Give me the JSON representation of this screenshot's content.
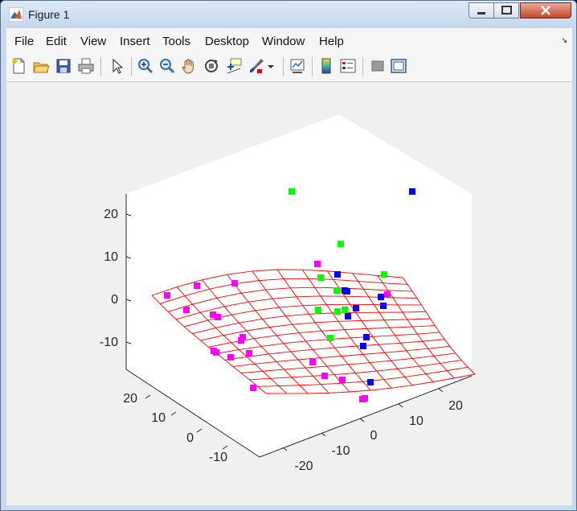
{
  "window": {
    "title": "Figure 1"
  },
  "menu": {
    "items": [
      "File",
      "Edit",
      "View",
      "Insert",
      "Tools",
      "Desktop",
      "Window",
      "Help"
    ]
  },
  "toolbar": {
    "icons": [
      "new-figure-icon",
      "open-file-icon",
      "save-icon",
      "print-icon",
      "pointer-icon",
      "zoom-in-icon",
      "zoom-out-icon",
      "pan-hand-icon",
      "rotate-3d-icon",
      "data-cursor-icon",
      "brush-icon",
      "brush-dropdown-icon",
      "link-plot-icon",
      "colorbar-icon",
      "legend-icon",
      "hide-plot-tools-icon",
      "show-plot-tools-icon"
    ]
  },
  "chart_data": {
    "type": "scatter",
    "title": "",
    "view": "3d",
    "grid": false,
    "z_ticks": [
      "20",
      "10",
      "0",
      "-10"
    ],
    "y_ticks": [
      "20",
      "10",
      "0",
      "-10"
    ],
    "x_ticks": [
      "20",
      "10",
      "0",
      "-10",
      "-20"
    ],
    "colors": {
      "surface": "#ff0000",
      "green": "#00ff00",
      "blue": "#0000ff",
      "magenta": "#ff00ff"
    }
  }
}
